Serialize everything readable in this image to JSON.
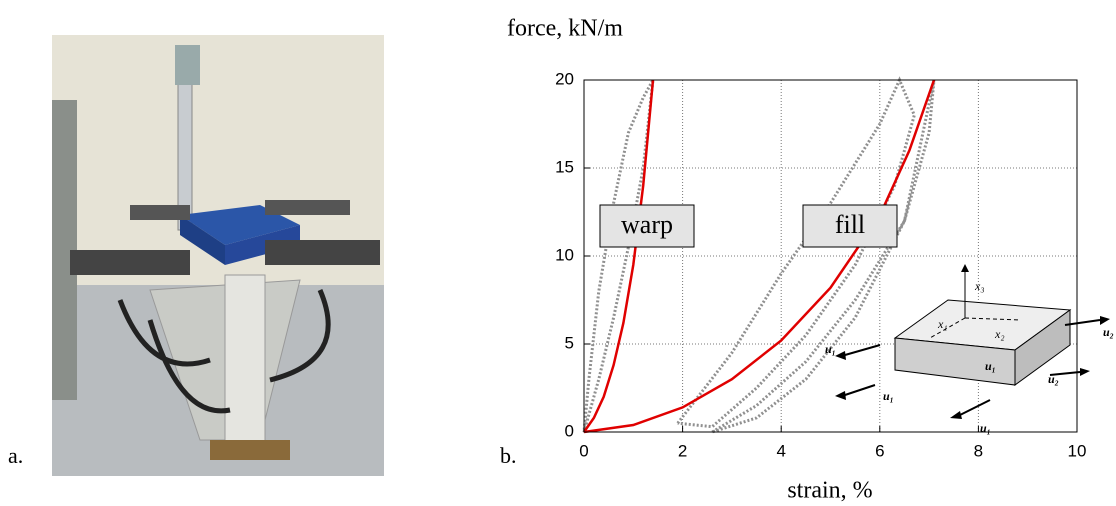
{
  "panel_labels": [
    "a.",
    "b."
  ],
  "chart_data": {
    "type": "line",
    "ylabel": "force, kN/m",
    "xlabel": "strain, %",
    "xlim": [
      0,
      10
    ],
    "ylim": [
      0,
      20
    ],
    "xticks": [
      0,
      2,
      4,
      6,
      8,
      10
    ],
    "yticks": [
      0,
      5,
      10,
      15,
      20
    ],
    "grid": true,
    "series": [
      {
        "name": "warp",
        "color": "#e00000",
        "x": [
          0,
          0.2,
          0.4,
          0.6,
          0.8,
          1.0,
          1.2,
          1.4
        ],
        "values": [
          0,
          0.8,
          2,
          3.8,
          6.2,
          9.5,
          14,
          20
        ]
      },
      {
        "name": "fill",
        "color": "#e00000",
        "x": [
          0,
          1,
          2,
          3,
          4,
          5,
          6,
          6.6,
          7.1
        ],
        "values": [
          0,
          0.4,
          1.4,
          3,
          5.2,
          8.2,
          12.3,
          16,
          20
        ]
      },
      {
        "color": "#909090",
        "x": [
          0,
          0.3,
          0.6,
          0.9,
          1.2,
          1.4,
          1.2,
          0.9,
          0.6,
          0.3,
          0.1,
          0
        ],
        "values": [
          0,
          3,
          6.5,
          10.5,
          15,
          20,
          19,
          17,
          13,
          8,
          3,
          0
        ]
      },
      {
        "color": "#909090",
        "x": [
          1.9,
          3,
          4,
          5,
          6,
          6.4,
          6.7,
          6.3,
          5.5,
          4.5,
          3.5,
          2.6,
          1.9
        ],
        "values": [
          0.5,
          4.5,
          9,
          13,
          17.5,
          20,
          18,
          14,
          9.5,
          5.5,
          2.5,
          0.3,
          0.5
        ]
      },
      {
        "color": "#909090",
        "x": [
          2.6,
          3.5,
          4.5,
          5.5,
          6.5,
          7.1,
          7.0,
          6.5,
          5.5,
          4.5,
          3.5,
          2.6
        ],
        "values": [
          0,
          1.5,
          4,
          7.5,
          12,
          20,
          17,
          12,
          6.5,
          3,
          0.8,
          0
        ]
      }
    ]
  },
  "inset": {
    "labels": [
      "x₃",
      "x₁",
      "x₂",
      "u₁",
      "u₂",
      "u₁",
      "u₂",
      "u₁",
      "u₁"
    ]
  }
}
